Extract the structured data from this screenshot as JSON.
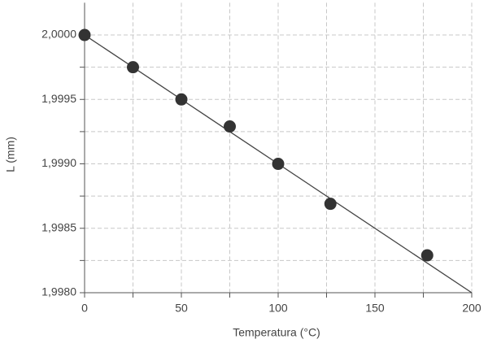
{
  "chart_data": {
    "type": "scatter",
    "x_label": "Temperatura (°C)",
    "y_label": "L (mm)",
    "x": [
      0,
      25,
      50,
      75,
      100,
      127,
      177
    ],
    "values": [
      2.0,
      1.99975,
      1.9995,
      1.99929,
      1.999,
      1.99869,
      1.99829
    ],
    "color": "#333333",
    "fit_line": {
      "x": [
        0,
        200
      ],
      "values": [
        2.0,
        1.998
      ],
      "color": "#444444"
    },
    "xlim": [
      0,
      200
    ],
    "ylim": [
      1.998,
      2.00025
    ],
    "xticks": [
      0,
      50,
      100,
      150,
      200
    ],
    "xminor_ticks": [
      25,
      75,
      125,
      175
    ],
    "yticks": [
      {
        "value": 1.998,
        "label": "1,9980"
      },
      {
        "value": 1.9985,
        "label": "1,9985"
      },
      {
        "value": 1.999,
        "label": "1,9990"
      },
      {
        "value": 1.9995,
        "label": "1,9995"
      },
      {
        "value": 2.0,
        "label": "2,0000"
      }
    ],
    "yminor_ticks": [
      1.99825,
      1.99875,
      1.99925,
      1.99975
    ],
    "grid": true
  }
}
